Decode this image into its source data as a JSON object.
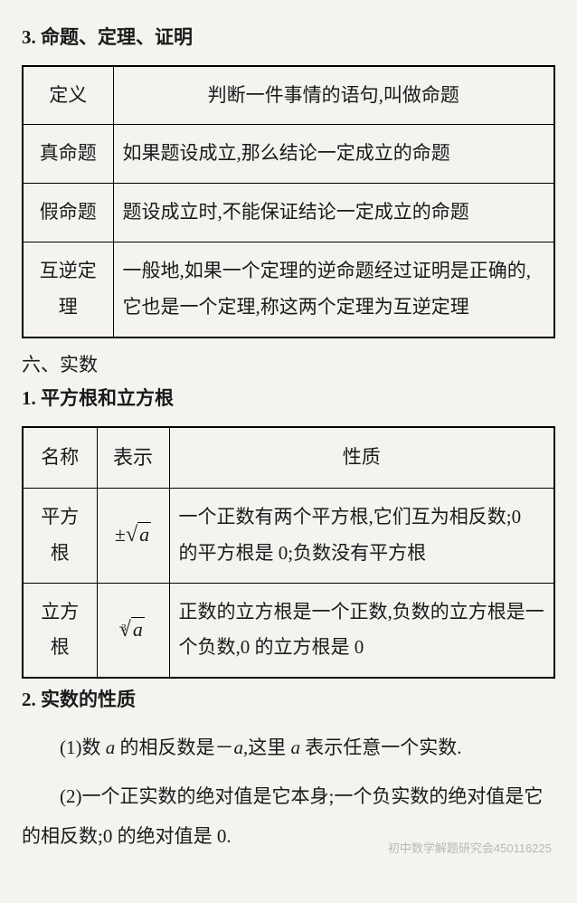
{
  "heading1": "3. 命题、定理、证明",
  "table1": {
    "rows": [
      {
        "term": "定义",
        "def": "判断一件事情的语句,叫做命题"
      },
      {
        "term": "真命题",
        "def": "如果题设成立,那么结论一定成立的命题"
      },
      {
        "term": "假命题",
        "def": "题设成立时,不能保证结论一定成立的命题"
      },
      {
        "term": "互逆定理",
        "def": "一般地,如果一个定理的逆命题经过证明是正确的,它也是一个定理,称这两个定理为互逆定理"
      }
    ]
  },
  "section6": "六、实数",
  "heading2": "1. 平方根和立方根",
  "table2": {
    "head": {
      "c1": "名称",
      "c2": "表示",
      "c3": "性质"
    },
    "rows": [
      {
        "name": "平方根",
        "notation_prefix": "±",
        "notation_index": "",
        "notation_arg": "a",
        "prop": "一个正数有两个平方根,它们互为相反数;0 的平方根是 0;负数没有平方根"
      },
      {
        "name": "立方根",
        "notation_prefix": "",
        "notation_index": "3",
        "notation_arg": "a",
        "prop": "正数的立方根是一个正数,负数的立方根是一个负数,0 的立方根是 0"
      }
    ]
  },
  "heading3": "2. 实数的性质",
  "para1_pre": "(1)数 ",
  "para1_a1": "a",
  "para1_mid": " 的相反数是－",
  "para1_a2": "a",
  "para1_mid2": ",这里 ",
  "para1_a3": "a",
  "para1_end": " 表示任意一个实数.",
  "para2": "(2)一个正实数的绝对值是它本身;一个负实数的绝对值是它的相反数;0 的绝对值是 0.",
  "watermark": "初中数学解题研究会450116225",
  "colors": {
    "bg": "#f5f3f0",
    "text": "#1a1a1a",
    "border": "#000000",
    "watermark": "#888888"
  }
}
